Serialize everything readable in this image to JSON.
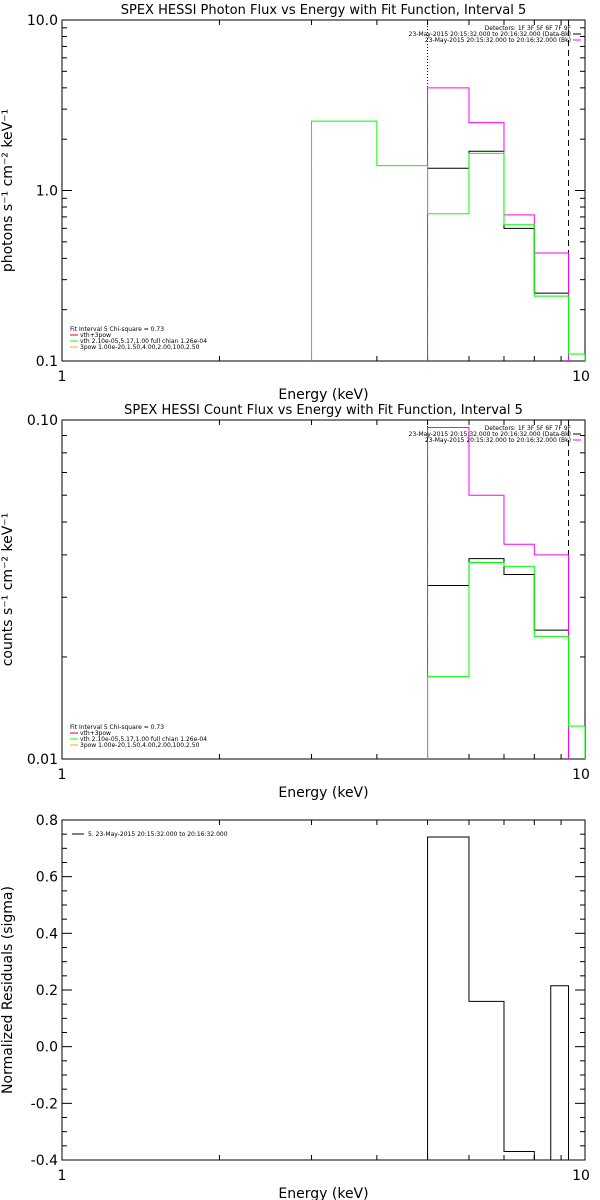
{
  "colors": {
    "data": "#000000",
    "background": "#ff00ff",
    "fit_total": "#ff0000",
    "vth": "#00ff00",
    "3pow": "#ffaa00",
    "frame": "#000000"
  },
  "chart_data": [
    {
      "type": "line",
      "title": "SPEX HESSI Photon Flux vs Energy with Fit Function, Interval 5",
      "xlabel": "Energy (keV)",
      "ylabel": "photons s⁻¹ cm⁻² keV⁻¹",
      "xscale": "log",
      "yscale": "log",
      "xlim": [
        1,
        10
      ],
      "ylim": [
        0.1,
        10
      ],
      "xticklabels": [
        "1",
        "10"
      ],
      "yticklabels": [
        "0.1",
        "1.0",
        "10.0"
      ],
      "vlines": [
        {
          "x": 5.0,
          "style": "dotted"
        },
        {
          "x": 9.3,
          "style": "dashed"
        }
      ],
      "legend_top": {
        "placement": "top-right",
        "lines": [
          "Detectors: 1F 3F 5F 6F 7F 9F",
          "23-May-2015 20:15:32.000 to 20:16:32.000 (Data-Bk)",
          "23-May-2015 20:15:32.000 to 20:16:32.000 (Bk)"
        ]
      },
      "legend_fit": {
        "placement": "bottom-left",
        "lines": [
          "Fit Interval 5   Chi-square = 0.73",
          "vth+3pow",
          "vth 2.10e-05,5.17,1.00  full chian 1.26e-04",
          "3pow 1.00e-20,1.50,4.00,2.00,100,2.50"
        ]
      },
      "series": [
        {
          "key": "data",
          "bins": [
            {
              "x0": 5.0,
              "x1": 6.0,
              "y": 1.35
            },
            {
              "x0": 6.0,
              "x1": 7.0,
              "y": 1.7
            },
            {
              "x0": 7.0,
              "x1": 8.0,
              "y": 0.6
            },
            {
              "x0": 8.0,
              "x1": 9.3,
              "y": 0.25
            }
          ]
        },
        {
          "key": "background",
          "bins": [
            {
              "x0": 5.0,
              "x1": 6.0,
              "y": 4.0
            },
            {
              "x0": 6.0,
              "x1": 7.0,
              "y": 2.5
            },
            {
              "x0": 7.0,
              "x1": 8.0,
              "y": 0.72
            },
            {
              "x0": 8.0,
              "x1": 9.3,
              "y": 0.43
            }
          ]
        },
        {
          "key": "vth",
          "bins": [
            {
              "x0": 3.0,
              "x1": 4.0,
              "y": 2.55
            },
            {
              "x0": 4.0,
              "x1": 5.0,
              "y": 1.4
            },
            {
              "x0": 5.0,
              "x1": 6.0,
              "y": 0.73
            },
            {
              "x0": 6.0,
              "x1": 7.0,
              "y": 1.65
            },
            {
              "x0": 7.0,
              "x1": 8.0,
              "y": 0.63
            },
            {
              "x0": 8.0,
              "x1": 9.3,
              "y": 0.24
            },
            {
              "x0": 9.3,
              "x1": 10.0,
              "y": 0.11
            }
          ]
        }
      ]
    },
    {
      "type": "line",
      "title": "SPEX HESSI Count Flux vs Energy with Fit Function, Interval 5",
      "xlabel": "Energy (keV)",
      "ylabel": "counts s⁻¹ cm⁻² keV⁻¹",
      "xscale": "log",
      "yscale": "log",
      "xlim": [
        1,
        10
      ],
      "ylim": [
        0.01,
        0.1
      ],
      "xticklabels": [
        "1",
        "10"
      ],
      "yticklabels": [
        "0.01",
        "0.10"
      ],
      "vlines": [
        {
          "x": 5.0,
          "style": "dotted"
        },
        {
          "x": 9.3,
          "style": "dashed"
        }
      ],
      "legend_top": {
        "placement": "top-right",
        "lines": [
          "Detectors: 1F 3F 5F 6F 7F 9F",
          "23-May-2015 20:15:32.000 to 20:16:32.000 (Data-Bk)",
          "23-May-2015 20:15:32.000 to 20:16:32.000 (Bk)"
        ]
      },
      "legend_fit": {
        "placement": "bottom-left",
        "lines": [
          "Fit Interval 5   Chi-square = 0.73",
          "vth+3pow",
          "vth 2.10e-05,5.17,1.00  full chian 1.26e-04",
          "3pow 1.00e-20,1.50,4.00,2.00,100,2.50"
        ]
      },
      "series": [
        {
          "key": "data",
          "bins": [
            {
              "x0": 5.0,
              "x1": 6.0,
              "y": 0.0325
            },
            {
              "x0": 6.0,
              "x1": 7.0,
              "y": 0.039
            },
            {
              "x0": 7.0,
              "x1": 8.0,
              "y": 0.035
            },
            {
              "x0": 8.0,
              "x1": 9.3,
              "y": 0.024
            }
          ]
        },
        {
          "key": "background",
          "bins": [
            {
              "x0": 5.0,
              "x1": 6.0,
              "y": 0.095
            },
            {
              "x0": 6.0,
              "x1": 7.0,
              "y": 0.06
            },
            {
              "x0": 7.0,
              "x1": 8.0,
              "y": 0.043
            },
            {
              "x0": 8.0,
              "x1": 9.3,
              "y": 0.04
            }
          ]
        },
        {
          "key": "vth",
          "bins": [
            {
              "x0": 5.0,
              "x1": 6.0,
              "y": 0.0175
            },
            {
              "x0": 6.0,
              "x1": 7.0,
              "y": 0.038
            },
            {
              "x0": 7.0,
              "x1": 8.0,
              "y": 0.037
            },
            {
              "x0": 8.0,
              "x1": 9.3,
              "y": 0.023
            },
            {
              "x0": 9.3,
              "x1": 10.0,
              "y": 0.0125
            }
          ]
        }
      ]
    },
    {
      "type": "line",
      "title": "",
      "xlabel": "Energy (keV)",
      "ylabel": "Normalized Residuals (sigma)",
      "xscale": "log",
      "yscale": "linear",
      "xlim": [
        1,
        10
      ],
      "ylim": [
        -0.4,
        0.8
      ],
      "xticklabels": [
        "1",
        "10"
      ],
      "yticklabels": [
        "-0.4",
        "-0.2",
        "0.0",
        "0.2",
        "0.4",
        "0.6",
        "0.8"
      ],
      "legend": "5. 23-May-2015 20:15:32.000 to 20:16:32.000",
      "series": [
        {
          "key": "data",
          "bins": [
            {
              "x0": 5.0,
              "x1": 6.0,
              "y": 0.74
            },
            {
              "x0": 6.0,
              "x1": 7.0,
              "y": 0.16
            },
            {
              "x0": 7.0,
              "x1": 8.0,
              "y": -0.37
            },
            {
              "x0": 8.0,
              "x1": 8.6,
              "y": -0.4
            },
            {
              "x0": 8.6,
              "x1": 9.3,
              "y": 0.215
            }
          ]
        }
      ]
    }
  ]
}
